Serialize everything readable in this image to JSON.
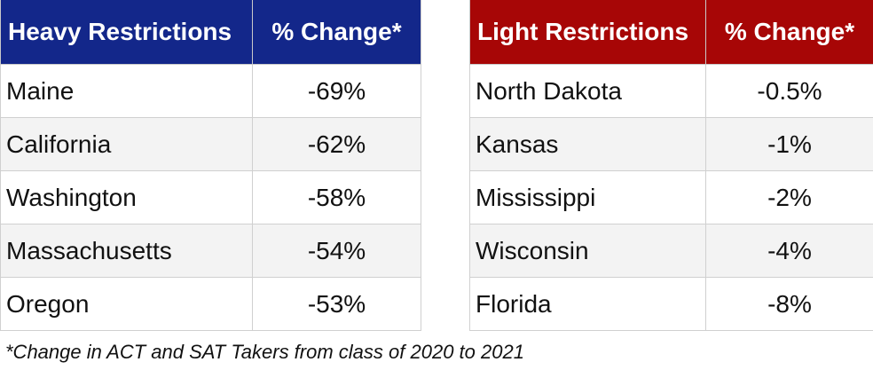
{
  "heavy": {
    "header_state": "Heavy Restrictions",
    "header_change": "% Change*",
    "rows": [
      {
        "state": "Maine",
        "change": "-69%"
      },
      {
        "state": "California",
        "change": "-62%"
      },
      {
        "state": "Washington",
        "change": "-58%"
      },
      {
        "state": "Massachusetts",
        "change": "-54%"
      },
      {
        "state": "Oregon",
        "change": "-53%"
      }
    ]
  },
  "light": {
    "header_state": "Light Restrictions",
    "header_change": "% Change*",
    "rows": [
      {
        "state": "North Dakota",
        "change": "-0.5%"
      },
      {
        "state": "Kansas",
        "change": "-1%"
      },
      {
        "state": "Mississippi",
        "change": "-2%"
      },
      {
        "state": "Wisconsin",
        "change": "-4%"
      },
      {
        "state": "Florida",
        "change": "-8%"
      }
    ]
  },
  "footnote": "*Change in ACT and SAT Takers from class of 2020 to 2021",
  "colors": {
    "heavy_header": "#13278a",
    "light_header": "#a70606",
    "zebra_row": "#f3f3f3"
  }
}
